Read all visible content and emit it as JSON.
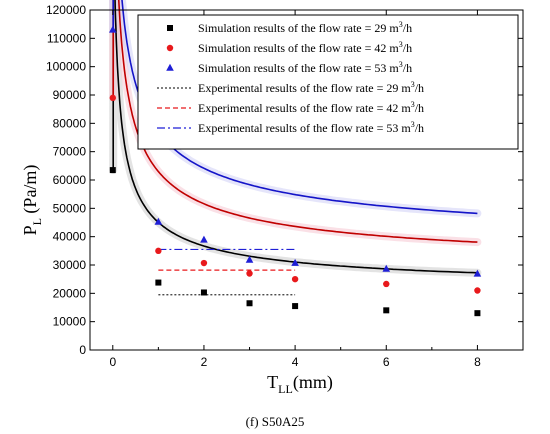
{
  "chart_data": {
    "type": "scatter",
    "caption": "(f) S50A25",
    "ylabel": {
      "main": "P",
      "sub": "L",
      "unit": " (Pa/m)"
    },
    "xlabel": {
      "main": "T",
      "sub": "LL",
      "unit": "(mm)"
    },
    "xlim": [
      -0.5,
      9
    ],
    "ylim": [
      0,
      120000
    ],
    "x_ticks": [
      0,
      2,
      4,
      6,
      8
    ],
    "y_ticks": [
      0,
      10000,
      20000,
      30000,
      40000,
      50000,
      60000,
      70000,
      80000,
      90000,
      100000,
      110000,
      120000
    ],
    "grid": false,
    "legend_position": "top-right",
    "series": [
      {
        "name": "Simulation results of the flow rate = 29 m³/h",
        "legend_prefix": "Simulation results of the flow rate = 29 m",
        "legend_suffix": "/h",
        "kind": "markers",
        "marker": "square",
        "color": "#000000",
        "x": [
          0,
          1,
          2,
          3,
          4,
          6,
          8
        ],
        "y": [
          63500,
          23800,
          20300,
          16500,
          15500,
          14000,
          13000
        ]
      },
      {
        "name": "Simulation results of the flow rate = 42 m³/h",
        "legend_prefix": "Simulation results of the flow rate = 42 m",
        "legend_suffix": "/h",
        "kind": "markers",
        "marker": "circle",
        "color": "#e8191c",
        "x": [
          0,
          1,
          2,
          3,
          4,
          6,
          8
        ],
        "y": [
          89000,
          35000,
          30700,
          27000,
          25000,
          23300,
          21000
        ]
      },
      {
        "name": "Simulation results of the flow rate = 53 m³/h",
        "legend_prefix": "Simulation results of the flow rate = 53 m",
        "legend_suffix": "/h",
        "kind": "markers",
        "marker": "triangle",
        "color": "#1f1fd6",
        "x": [
          0,
          1,
          2,
          3,
          4,
          6,
          8
        ],
        "y": [
          113000,
          45200,
          38900,
          31800,
          30700,
          28600,
          26900
        ]
      },
      {
        "name": "Experimental results of the flow rate = 29 m³/h",
        "legend_prefix": "Experimental results of the flow rate = 29 m",
        "legend_suffix": "/h",
        "kind": "hline",
        "dash": "2,2",
        "color": "#333333",
        "x": [
          1,
          4
        ],
        "y": [
          19500,
          19500
        ]
      },
      {
        "name": "Experimental results of the flow rate = 42 m³/h",
        "legend_prefix": "Experimental results of the flow rate = 42 m",
        "legend_suffix": "/h",
        "kind": "hline",
        "dash": "5,3",
        "color": "#e8191c",
        "x": [
          1,
          4
        ],
        "y": [
          28200,
          28200
        ]
      },
      {
        "name": "Experimental results of the flow rate = 53 m³/h",
        "legend_prefix": "Experimental results of the flow rate = 53 m",
        "legend_suffix": "/h",
        "kind": "hline",
        "dash": "8,3,2,3",
        "color": "#1f1fd6",
        "x": [
          1,
          4
        ],
        "y": [
          35500,
          35500
        ]
      }
    ],
    "fits": [
      {
        "color": "#000000",
        "band": "#cccccc",
        "a": 26000,
        "b": 19800,
        "c": -0.6,
        "y0": 63500,
        "x_end": 8
      },
      {
        "color": "#c00000",
        "band": "#f5c6d2",
        "a": 38000,
        "b": 26000,
        "c": -0.55,
        "y0": 89000,
        "x_end": 8
      },
      {
        "color": "#1414c8",
        "band": "#cfcff5",
        "a": 46000,
        "b": 32000,
        "c": -0.5,
        "y0": 113000,
        "x_end": 8
      }
    ]
  }
}
